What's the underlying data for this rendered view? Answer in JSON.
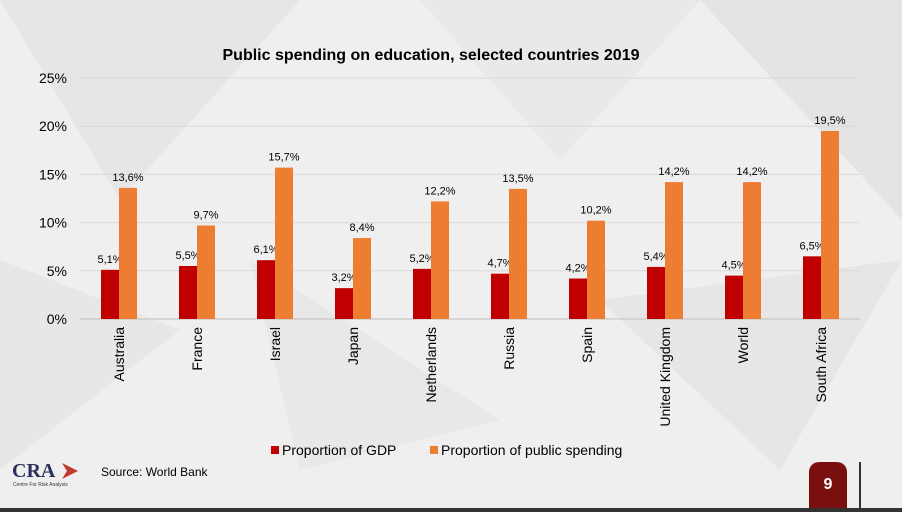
{
  "chart_data": {
    "type": "bar",
    "title": "Public spending on education, selected countries 2019",
    "categories": [
      "Australia",
      "France",
      "Israel",
      "Japan",
      "Netherlands",
      "Russia",
      "Spain",
      "United Kingdom",
      "World",
      "South Africa"
    ],
    "series": [
      {
        "name": "Proportion of GDP",
        "color": "#c00000",
        "values": [
          5.1,
          5.5,
          6.1,
          3.2,
          5.2,
          4.7,
          4.2,
          5.4,
          4.5,
          6.5
        ],
        "labels": [
          "5,1%",
          "5,5%",
          "6,1%",
          "3,2%",
          "5,2%",
          "4,7%",
          "4,2%",
          "5,4%",
          "4,5%",
          "6,5%"
        ]
      },
      {
        "name": "Proportion of public spending",
        "color": "#ed7d31",
        "values": [
          13.6,
          9.7,
          15.7,
          8.4,
          12.2,
          13.5,
          10.2,
          14.2,
          14.2,
          19.5
        ],
        "labels": [
          "13,6%",
          "9,7%",
          "15,7%",
          "8,4%",
          "12,2%",
          "13,5%",
          "10,2%",
          "14,2%",
          "14,2%",
          "19,5%"
        ]
      }
    ],
    "ylim": [
      0,
      25
    ],
    "yticks": [
      0,
      5,
      10,
      15,
      20,
      25
    ],
    "ytick_labels": [
      "0%",
      "5%",
      "10%",
      "15%",
      "20%",
      "25%"
    ],
    "grid": true,
    "legend": "bottom"
  },
  "source": "Source: World Bank",
  "logo": {
    "text": "CRA",
    "subtitle": "Centre For Risk Analysis"
  },
  "page_number": "9",
  "colors": {
    "background": "#efefef",
    "badge": "#7a0f0f"
  }
}
